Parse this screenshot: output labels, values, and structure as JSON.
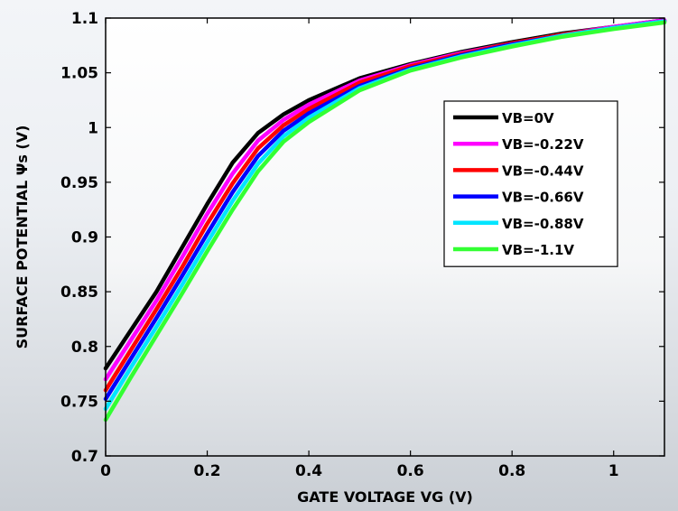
{
  "chart_data": {
    "type": "line",
    "title": "",
    "xlabel": "GATE VOLTAGE  VG  (V)",
    "ylabel": "SURFACE POTENTIAL  Ψs  (V)",
    "xlim": [
      0,
      1.1
    ],
    "ylim": [
      0.7,
      1.1
    ],
    "x_ticks": [
      0,
      0.2,
      0.4,
      0.6,
      0.8,
      1
    ],
    "x_tick_labels": [
      "0",
      "0.2",
      "0.4",
      "0.6",
      "0.8",
      "1"
    ],
    "y_ticks": [
      0.7,
      0.75,
      0.8,
      0.85,
      0.9,
      0.95,
      1,
      1.05,
      1.1
    ],
    "y_tick_labels": [
      "0.7",
      "0.75",
      "0.8",
      "0.85",
      "0.9",
      "0.95",
      "1",
      "1.05",
      "1.1"
    ],
    "grid": false,
    "legend_position": "center-right",
    "x": [
      0,
      0.05,
      0.1,
      0.15,
      0.2,
      0.25,
      0.3,
      0.35,
      0.4,
      0.5,
      0.6,
      0.7,
      0.8,
      0.9,
      1.0,
      1.1
    ],
    "series": [
      {
        "name": "VB=0V",
        "color": "#000000",
        "values": [
          0.78,
          0.815,
          0.85,
          0.89,
          0.93,
          0.968,
          0.995,
          1.012,
          1.025,
          1.045,
          1.058,
          1.069,
          1.078,
          1.086,
          1.092,
          1.098
        ]
      },
      {
        "name": "VB=-0.22V",
        "color": "#ff00ff",
        "values": [
          0.77,
          0.806,
          0.842,
          0.881,
          0.921,
          0.958,
          0.988,
          1.007,
          1.021,
          1.043,
          1.057,
          1.068,
          1.077,
          1.085,
          1.092,
          1.098
        ]
      },
      {
        "name": "VB=-0.44V",
        "color": "#ff0000",
        "values": [
          0.76,
          0.797,
          0.834,
          0.872,
          0.912,
          0.949,
          0.981,
          1.002,
          1.017,
          1.041,
          1.056,
          1.067,
          1.077,
          1.085,
          1.091,
          1.097
        ]
      },
      {
        "name": "VB=-0.66V",
        "color": "#0000ff",
        "values": [
          0.752,
          0.789,
          0.826,
          0.864,
          0.903,
          0.941,
          0.974,
          0.997,
          1.013,
          1.038,
          1.054,
          1.066,
          1.076,
          1.084,
          1.091,
          1.097
        ]
      },
      {
        "name": "VB=-0.88V",
        "color": "#00e5ff",
        "values": [
          0.743,
          0.781,
          0.818,
          0.856,
          0.895,
          0.933,
          0.967,
          0.992,
          1.009,
          1.036,
          1.053,
          1.065,
          1.075,
          1.084,
          1.091,
          1.097
        ]
      },
      {
        "name": "VB=-1.1V",
        "color": "#33ff33",
        "values": [
          0.733,
          0.772,
          0.81,
          0.848,
          0.887,
          0.925,
          0.96,
          0.987,
          1.005,
          1.034,
          1.052,
          1.064,
          1.074,
          1.083,
          1.09,
          1.096
        ]
      }
    ]
  }
}
